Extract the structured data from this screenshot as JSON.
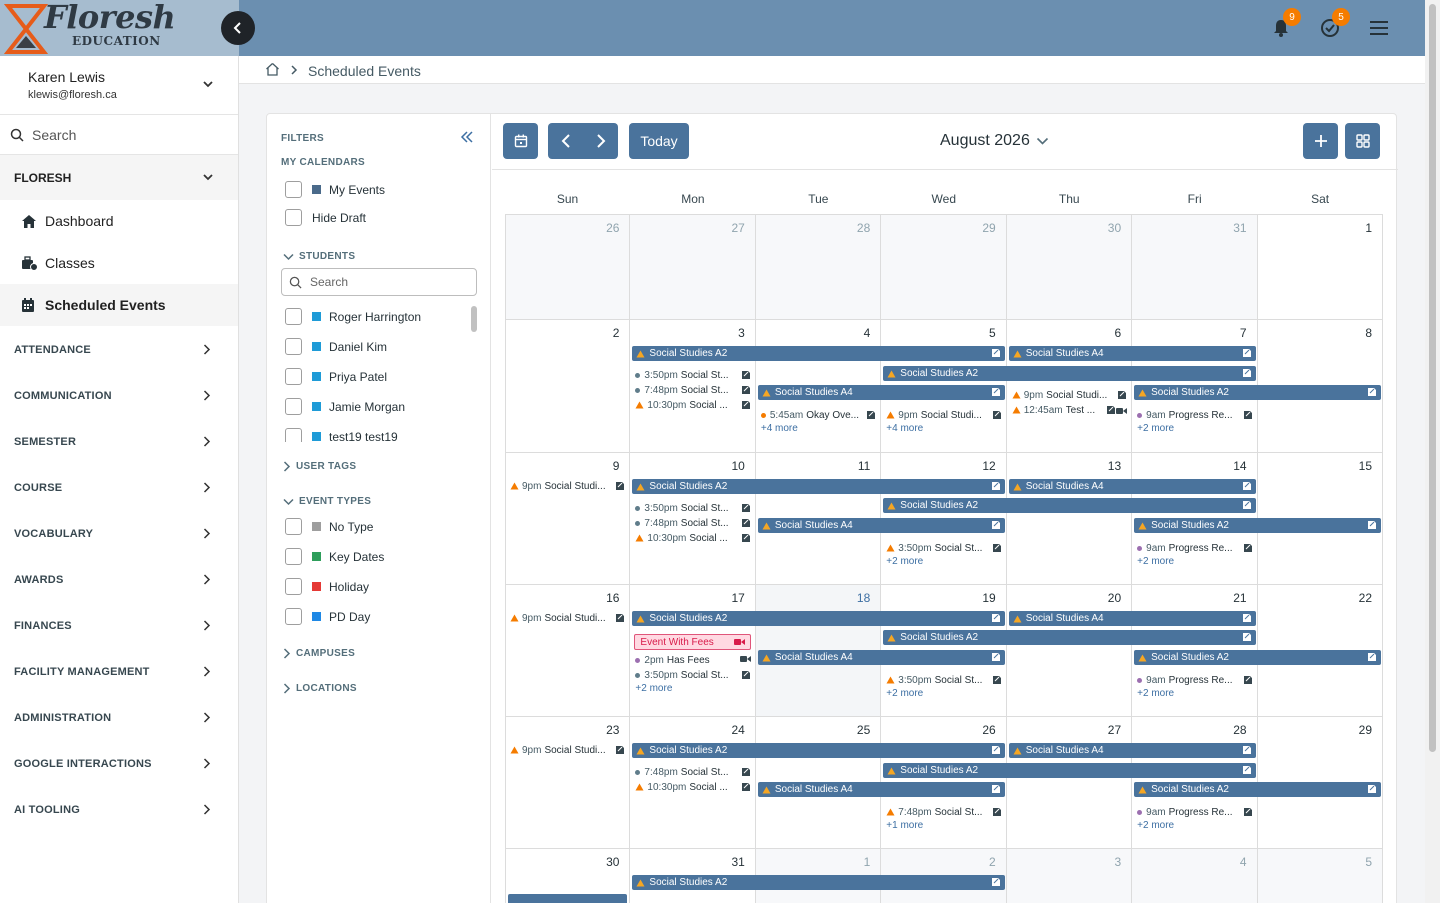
{
  "brand": {
    "name": "Floresh",
    "sub": "EDUCATION"
  },
  "topbar": {
    "notifications_count": "9",
    "tasks_count": "5"
  },
  "user": {
    "name": "Karen Lewis",
    "email": "klewis@floresh.ca"
  },
  "sidebar": {
    "search_label": "Search",
    "section": "FLORESH",
    "items": [
      {
        "label": "Dashboard",
        "icon": "home-icon"
      },
      {
        "label": "Classes",
        "icon": "classes-icon"
      },
      {
        "label": "Scheduled Events",
        "icon": "calendar-icon"
      }
    ],
    "groups": [
      "ATTENDANCE",
      "COMMUNICATION",
      "SEMESTER",
      "COURSE",
      "VOCABULARY",
      "AWARDS",
      "FINANCES",
      "FACILITY MANAGEMENT",
      "ADMINISTRATION",
      "GOOGLE INTERACTIONS",
      "AI TOOLING"
    ]
  },
  "breadcrumb": {
    "current": "Scheduled Events"
  },
  "filters": {
    "title": "FILTERS",
    "my_calendars": "MY CALENDARS",
    "my_events": "My Events",
    "hide_draft": "Hide Draft",
    "students_label": "STUDENTS",
    "search_placeholder": "Search",
    "students": [
      {
        "name": "Roger Harrington"
      },
      {
        "name": "Daniel Kim"
      },
      {
        "name": "Priya Patel"
      },
      {
        "name": "Jamie Morgan"
      },
      {
        "name": "test19 test19"
      }
    ],
    "user_tags": "USER TAGS",
    "event_types_label": "EVENT TYPES",
    "event_types": [
      {
        "name": "No Type",
        "color": "#9e9e9e"
      },
      {
        "name": "Key Dates",
        "color": "#2e9e5b"
      },
      {
        "name": "Holiday",
        "color": "#e53935"
      },
      {
        "name": "PD Day",
        "color": "#1e88e5"
      }
    ],
    "campuses": "CAMPUSES",
    "locations": "LOCATIONS"
  },
  "calendar": {
    "today_label": "Today",
    "month_label": "August 2026",
    "weekdays": [
      "Sun",
      "Mon",
      "Tue",
      "Wed",
      "Thu",
      "Fri",
      "Sat"
    ],
    "weeks": [
      [
        "26",
        "27",
        "28",
        "29",
        "30",
        "31",
        "1"
      ],
      [
        "2",
        "3",
        "4",
        "5",
        "6",
        "7",
        "8"
      ],
      [
        "9",
        "10",
        "11",
        "12",
        "13",
        "14",
        "15"
      ],
      [
        "16",
        "17",
        "18",
        "19",
        "20",
        "21",
        "22"
      ],
      [
        "23",
        "24",
        "25",
        "26",
        "27",
        "28",
        "29"
      ],
      [
        "30",
        "31",
        "1",
        "2",
        "3",
        "4",
        "5"
      ]
    ],
    "bar_a2": "Social Studies A2",
    "bar_a4": "Social Studies A4",
    "fee_event": "Event With Fees",
    "events": {
      "t350": "3:50pm",
      "t748": "7:48pm",
      "t1030": "10:30pm",
      "t545": "5:45am",
      "t9pm": "9pm",
      "t1245": "12:45am",
      "t9am": "9am",
      "t2pm": "2pm",
      "social_st": "Social St...",
      "social_dots": "Social ...",
      "social_studi": "Social Studi...",
      "okay_ove": "Okay Ove...",
      "test": "Test ...",
      "progress_re": "Progress Re...",
      "has_fees": "Has Fees"
    },
    "more": {
      "m4": "+4 more",
      "m2": "+2 more",
      "m1": "+1 more"
    }
  },
  "colors": {
    "topbar": "#6b8fb0",
    "event_bar": "#4a739c",
    "warning": "#f57c00",
    "badge": "#f57c00"
  }
}
